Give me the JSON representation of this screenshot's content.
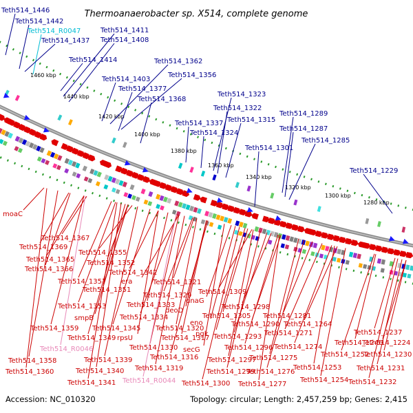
{
  "title": "Thermoanaerobacter sp. X514, complete genome",
  "footer": {
    "accession": "Accession: NC_010320",
    "summary": "Topology: circular; Length: 2,457,259 bp; Genes: 2,415"
  },
  "ruler_ticks": [
    "1460 kbp",
    "1440 kbp",
    "1420 kbp",
    "1400 kbp",
    "1380 kbp",
    "1360 kbp",
    "1340 kbp",
    "1320 kbp",
    "1300 kbp",
    "1280 kbp"
  ],
  "top_labels": [
    {
      "text": "Teth514_1446",
      "color": "blue"
    },
    {
      "text": "Teth514_1442",
      "color": "blue"
    },
    {
      "text": "Teth514_R0047",
      "color": "cyan"
    },
    {
      "text": "Teth514_1437",
      "color": "blue"
    },
    {
      "text": "Teth514_1411",
      "color": "blue"
    },
    {
      "text": "Teth514_1408",
      "color": "blue"
    },
    {
      "text": "Teth514_1414",
      "color": "blue"
    },
    {
      "text": "Teth514_1362",
      "color": "blue"
    },
    {
      "text": "Teth514_1356",
      "color": "blue"
    },
    {
      "text": "Teth514_1403",
      "color": "blue"
    },
    {
      "text": "Teth514_1377",
      "color": "blue"
    },
    {
      "text": "Teth514_1368",
      "color": "blue"
    },
    {
      "text": "Teth514_1323",
      "color": "blue"
    },
    {
      "text": "Teth514_1322",
      "color": "blue"
    },
    {
      "text": "Teth514_1315",
      "color": "blue"
    },
    {
      "text": "Teth514_1337",
      "color": "blue"
    },
    {
      "text": "Teth514_1324",
      "color": "blue"
    },
    {
      "text": "Teth514_1289",
      "color": "blue"
    },
    {
      "text": "Teth514_1287",
      "color": "blue"
    },
    {
      "text": "Teth514_1285",
      "color": "blue"
    },
    {
      "text": "Teth514_1301",
      "color": "blue"
    },
    {
      "text": "Teth514_1229",
      "color": "blue"
    }
  ],
  "bottom_labels": [
    {
      "text": "moaC",
      "color": "red"
    },
    {
      "text": "Teth514_1367",
      "color": "red"
    },
    {
      "text": "Teth514_1369",
      "color": "red"
    },
    {
      "text": "Teth514_1355",
      "color": "red"
    },
    {
      "text": "Teth514_1365",
      "color": "red"
    },
    {
      "text": "Teth514_1352",
      "color": "red"
    },
    {
      "text": "Teth514_1366",
      "color": "red"
    },
    {
      "text": "Teth514_1342",
      "color": "red"
    },
    {
      "text": "Teth514_1357",
      "color": "red"
    },
    {
      "text": "era",
      "color": "red"
    },
    {
      "text": "Teth514_1321",
      "color": "red"
    },
    {
      "text": "Teth514_1351",
      "color": "red"
    },
    {
      "text": "Teth514_1329",
      "color": "red"
    },
    {
      "text": "Teth514_1309",
      "color": "red"
    },
    {
      "text": "Teth514_1353",
      "color": "red"
    },
    {
      "text": "Teth514_1333",
      "color": "red"
    },
    {
      "text": "dnaG",
      "color": "red"
    },
    {
      "text": "Teth514_1298",
      "color": "red"
    },
    {
      "text": "smpB",
      "color": "red"
    },
    {
      "text": "Teth514_1334",
      "color": "red"
    },
    {
      "text": "deoD",
      "color": "red"
    },
    {
      "text": "Teth514_1305",
      "color": "red"
    },
    {
      "text": "Teth514_1281",
      "color": "red"
    },
    {
      "text": "Teth514_1359",
      "color": "red"
    },
    {
      "text": "Teth514_1345",
      "color": "red"
    },
    {
      "text": "Teth514_1320",
      "color": "red"
    },
    {
      "text": "eno",
      "color": "red"
    },
    {
      "text": "Teth514_1290",
      "color": "red"
    },
    {
      "text": "Teth514_1264",
      "color": "red"
    },
    {
      "text": "Teth514_1349",
      "color": "red"
    },
    {
      "text": "rpsU",
      "color": "red"
    },
    {
      "text": "Teth514_1317",
      "color": "red"
    },
    {
      "text": "pgk",
      "color": "red"
    },
    {
      "text": "Teth514_1293",
      "color": "red"
    },
    {
      "text": "Teth514_1271",
      "color": "red"
    },
    {
      "text": "Teth514_1237",
      "color": "red"
    },
    {
      "text": "Teth514_R0046",
      "color": "pink"
    },
    {
      "text": "Teth514_1330",
      "color": "red"
    },
    {
      "text": "Teth514_1296",
      "color": "red"
    },
    {
      "text": "Teth514_1274",
      "color": "red"
    },
    {
      "text": "Teth514_1246",
      "color": "red"
    },
    {
      "text": "Teth514_1224",
      "color": "red"
    },
    {
      "text": "Teth514_1358",
      "color": "red"
    },
    {
      "text": "Teth514_1339",
      "color": "red"
    },
    {
      "text": "Teth514_1316",
      "color": "red"
    },
    {
      "text": "secG",
      "color": "red"
    },
    {
      "text": "Teth514_1297",
      "color": "red"
    },
    {
      "text": "Teth514_1275",
      "color": "red"
    },
    {
      "text": "Teth514_1252",
      "color": "red"
    },
    {
      "text": "Teth514_1230",
      "color": "red"
    },
    {
      "text": "Teth514_1360",
      "color": "red"
    },
    {
      "text": "Teth514_1340",
      "color": "red"
    },
    {
      "text": "Teth514_1319",
      "color": "red"
    },
    {
      "text": "Teth514_1299",
      "color": "red"
    },
    {
      "text": "Teth514_1276",
      "color": "red"
    },
    {
      "text": "Teth514_1253",
      "color": "red"
    },
    {
      "text": "Teth514_1231",
      "color": "red"
    },
    {
      "text": "Teth514_1341",
      "color": "red"
    },
    {
      "text": "Teth514_R0044",
      "color": "pink"
    },
    {
      "text": "Teth514_1300",
      "color": "red"
    },
    {
      "text": "Teth514_1277",
      "color": "red"
    },
    {
      "text": "Teth514_1254",
      "color": "red"
    },
    {
      "text": "Teth514_1232",
      "color": "red"
    }
  ],
  "colors": {
    "forward_arrow": "#e00000",
    "reverse_arrow": "#e00000",
    "blue_arrow": "#1a1aff",
    "ruler": "#2a9a2a",
    "label_blue": "#00008b",
    "label_red": "#cc0000",
    "label_pink": "#e888b8",
    "label_cyan": "#00bcd4"
  },
  "band_palette": [
    "#00c8c8",
    "#40e0e0",
    "#ff3399",
    "#808080",
    "#c0c0c0",
    "#0000cc",
    "#66cc66",
    "#ffaa00",
    "#9933cc",
    "#33cccc",
    "#cc3366",
    "#999999"
  ]
}
